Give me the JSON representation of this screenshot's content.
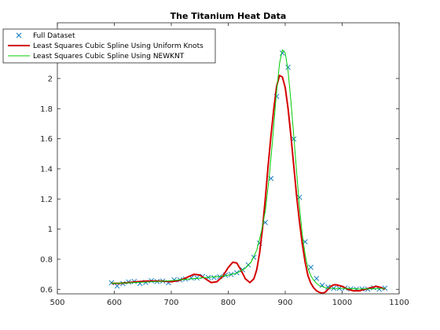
{
  "chart_data": {
    "type": "line",
    "title": "The Titanium Heat Data",
    "xlabel": "",
    "ylabel": "",
    "xlim": [
      500,
      1100
    ],
    "ylim": [
      0.57,
      2.37
    ],
    "xticks": [
      "500",
      "600",
      "700",
      "800",
      "900",
      "1000",
      "1100"
    ],
    "yticks": [
      "0.6",
      "0.8",
      "1",
      "1.2",
      "1.4",
      "1.6",
      "1.8",
      "2"
    ],
    "grid": false,
    "legend_position": "top-left",
    "series": [
      {
        "name": "Full Dataset",
        "kind": "markers",
        "marker": "x",
        "color": "#0072BD",
        "x": [
          595,
          605,
          615,
          625,
          635,
          645,
          655,
          665,
          675,
          685,
          695,
          705,
          715,
          725,
          735,
          745,
          755,
          765,
          775,
          785,
          795,
          805,
          815,
          825,
          835,
          845,
          855,
          865,
          875,
          885,
          895,
          905,
          915,
          925,
          935,
          945,
          955,
          965,
          975,
          985,
          995,
          1005,
          1015,
          1025,
          1035,
          1045,
          1055,
          1065,
          1075
        ],
        "y": [
          0.644,
          0.622,
          0.638,
          0.649,
          0.652,
          0.639,
          0.646,
          0.657,
          0.652,
          0.655,
          0.644,
          0.663,
          0.663,
          0.668,
          0.676,
          0.676,
          0.686,
          0.679,
          0.678,
          0.683,
          0.694,
          0.699,
          0.71,
          0.73,
          0.763,
          0.812,
          0.907,
          1.044,
          1.336,
          1.881,
          2.169,
          2.075,
          1.598,
          1.211,
          0.916,
          0.746,
          0.672,
          0.627,
          0.615,
          0.607,
          0.606,
          0.609,
          0.603,
          0.601,
          0.603,
          0.601,
          0.611,
          0.601,
          0.608
        ]
      },
      {
        "name": "Least Squares Cubic Spline Using Uniform Knots",
        "kind": "line",
        "color": "#D40000",
        "x": [
          595,
          610,
          625,
          640,
          655,
          670,
          685,
          700,
          715,
          725,
          740,
          750,
          760,
          770,
          780,
          790,
          800,
          808,
          815,
          822,
          830,
          838,
          845,
          850,
          855,
          860,
          865,
          870,
          875,
          880,
          885,
          890,
          895,
          900,
          905,
          910,
          915,
          920,
          925,
          930,
          935,
          940,
          945,
          950,
          955,
          960,
          965,
          970,
          975,
          980,
          985,
          990,
          1000,
          1010,
          1020,
          1030,
          1040,
          1050,
          1060,
          1070,
          1075
        ],
        "y": [
          0.64,
          0.64,
          0.645,
          0.65,
          0.655,
          0.655,
          0.655,
          0.65,
          0.66,
          0.675,
          0.7,
          0.695,
          0.67,
          0.645,
          0.65,
          0.685,
          0.745,
          0.78,
          0.775,
          0.73,
          0.67,
          0.645,
          0.67,
          0.73,
          0.84,
          1.0,
          1.2,
          1.42,
          1.62,
          1.8,
          1.95,
          2.02,
          2.01,
          1.94,
          1.8,
          1.62,
          1.42,
          1.22,
          1.05,
          0.9,
          0.78,
          0.69,
          0.64,
          0.61,
          0.59,
          0.58,
          0.575,
          0.58,
          0.6,
          0.62,
          0.63,
          0.63,
          0.62,
          0.6,
          0.59,
          0.59,
          0.6,
          0.61,
          0.62,
          0.61,
          0.6
        ]
      },
      {
        "name": "Least Squares Cubic Spline Using NEWKNT",
        "kind": "line",
        "color": "#00CC00",
        "x": [
          595,
          615,
          635,
          655,
          675,
          695,
          715,
          735,
          755,
          775,
          795,
          815,
          830,
          840,
          850,
          858,
          865,
          872,
          878,
          884,
          890,
          895,
          900,
          905,
          910,
          915,
          920,
          925,
          930,
          935,
          940,
          945,
          950,
          955,
          960,
          970,
          980,
          990,
          1000,
          1010,
          1020,
          1030,
          1040,
          1050,
          1060,
          1070,
          1075
        ],
        "y": [
          0.64,
          0.642,
          0.645,
          0.648,
          0.652,
          0.656,
          0.663,
          0.67,
          0.676,
          0.682,
          0.69,
          0.708,
          0.74,
          0.78,
          0.86,
          0.98,
          1.12,
          1.35,
          1.6,
          1.88,
          2.1,
          2.19,
          2.17,
          2.05,
          1.85,
          1.62,
          1.38,
          1.15,
          0.96,
          0.83,
          0.74,
          0.69,
          0.66,
          0.64,
          0.625,
          0.612,
          0.607,
          0.605,
          0.606,
          0.606,
          0.604,
          0.602,
          0.603,
          0.603,
          0.605,
          0.606,
          0.606
        ]
      }
    ]
  }
}
